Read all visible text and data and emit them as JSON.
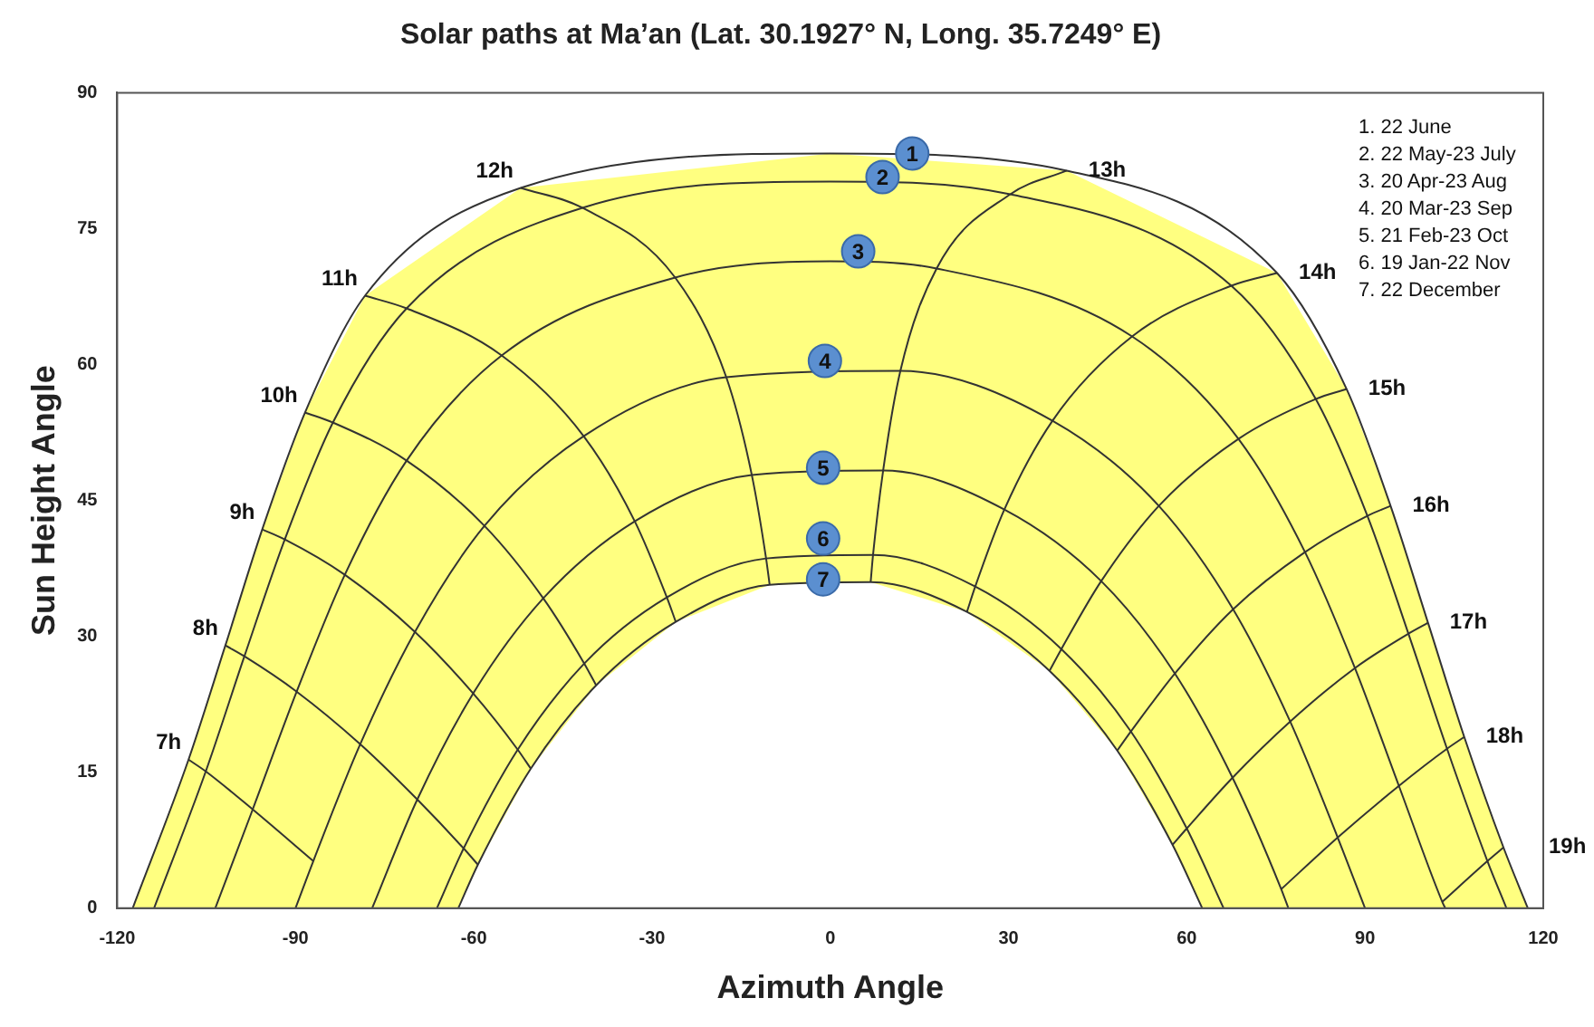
{
  "chart_data": {
    "type": "line",
    "title": "Solar paths at Ma’an (Lat. 30.1927° N, Long. 35.7249° E)",
    "xlabel": "Azimuth Angle",
    "ylabel": "Sun Height Angle",
    "xlim": [
      -120,
      120
    ],
    "xticks": [
      -120,
      -90,
      -60,
      -30,
      0,
      30,
      60,
      90,
      120
    ],
    "ylim": [
      0,
      90
    ],
    "yticks": [
      0,
      15,
      30,
      45,
      60,
      75,
      90
    ],
    "grid": false,
    "legend": false,
    "marker": "none",
    "line_style": "solid",
    "annotations": [
      "1. 22 June",
      "2. 22 May-23 July",
      "3. 20 Apr-23 Aug",
      "4. 20 Mar-23 Sep",
      "5. 21 Feb-23 Oct",
      "6. 19 Jan-22 Nov",
      "7. 22 December",
      {
        "text": "1",
        "x": 13.8,
        "y": 83.3
      },
      {
        "text": "2",
        "x": 8.8,
        "y": 80.7
      },
      {
        "text": "3",
        "x": 4.7,
        "y": 72.5
      },
      {
        "text": "4",
        "x": -0.9,
        "y": 60.4
      },
      {
        "text": "5",
        "x": -1.2,
        "y": 48.6
      },
      {
        "text": "6",
        "x": -1.2,
        "y": 40.8
      },
      {
        "text": "7",
        "x": -1.2,
        "y": 36.3
      }
    ],
    "series": [
      {
        "color": "#333333",
        "x": [
          -117.4,
          -108,
          -101.8,
          -95.6,
          -88.4,
          -78.3,
          -52.1,
          0,
          39.8,
          75.2,
          86.9,
          94.3,
          100.6,
          106.7,
          113.3,
          117.4
        ],
        "values": [
          0,
          16.4,
          29,
          41.8,
          54.7,
          67.6,
          79.5,
          83.3,
          81.4,
          70.1,
          57.3,
          44.4,
          31.5,
          18.9,
          6.7,
          0
        ]
      },
      {
        "color": "#333333",
        "x": [
          -113.8,
          -105.1,
          -98.6,
          -91.8,
          -83.7,
          -71.3,
          -41.7,
          0,
          30.3,
          67.5,
          81.7,
          90.4,
          97.3,
          103.8,
          110.6,
          113.8
        ],
        "values": [
          0,
          15.1,
          27.8,
          40.7,
          53.6,
          66.2,
          77.3,
          80.2,
          78.8,
          68.7,
          56.2,
          43.3,
          30.3,
          17.6,
          5.2,
          0
        ]
      },
      {
        "color": "#333333",
        "x": [
          -103.5,
          -97.2,
          -89.8,
          -81.7,
          -71.3,
          -55.3,
          -26.1,
          0,
          17.9,
          50.8,
          68.7,
          79.9,
          88.3,
          95.7,
          103,
          103.5
        ],
        "values": [
          0,
          10.9,
          23.9,
          36.8,
          49.4,
          61,
          69.6,
          71.4,
          70.6,
          63.1,
          51.8,
          39.3,
          26.5,
          13.5,
          0.7,
          0
        ]
      },
      {
        "color": "#333333",
        "x": [
          -90,
          -87,
          -79.1,
          -69.9,
          -58.2,
          -41.5,
          -17.5,
          11.8,
          37.4,
          55.3,
          67.8,
          77.4,
          85.4,
          90
        ],
        "values": [
          0,
          5.2,
          18.1,
          30.5,
          42.2,
          52.1,
          58.6,
          59.3,
          53.8,
          44.4,
          33,
          20.6,
          7.8,
          0
        ]
      },
      {
        "color": "#333333",
        "x": [
          -77.1,
          -69.5,
          -60.1,
          -48.3,
          -32.9,
          -13.2,
          8.9,
          29.3,
          45.6,
          58,
          67.7,
          75.9,
          77.1
        ],
        "values": [
          0,
          12,
          23.7,
          34.2,
          42.7,
          47.8,
          48.3,
          44,
          36.1,
          25.9,
          14.4,
          2.1,
          0
        ]
      },
      {
        "color": "#333333",
        "x": [
          -66.2,
          -61.7,
          -52.6,
          -41.4,
          -27.5,
          -10.8,
          7.2,
          24.4,
          38.9,
          50.6,
          60,
          66.2
        ],
        "values": [
          0,
          6.6,
          17.5,
          27,
          34.3,
          38.6,
          39,
          35.5,
          28.6,
          19.5,
          8.8,
          0
        ]
      },
      {
        "color": "#333333",
        "x": [
          -62.6,
          -59.3,
          -50.4,
          -39.4,
          -26,
          -10.2,
          6.8,
          23,
          36.9,
          48.3,
          57.6,
          62.6
        ],
        "values": [
          0,
          4.8,
          15.4,
          24.6,
          31.6,
          35.7,
          36,
          32.7,
          26.2,
          17.4,
          7,
          0
        ]
      },
      {
        "name": "7h",
        "color": "#333333",
        "x": [
          -108,
          -105.1,
          -97.2,
          -87
        ],
        "values": [
          16.4,
          15.1,
          10.9,
          5.2
        ]
      },
      {
        "name": "8h",
        "color": "#333333",
        "x": [
          -101.8,
          -98.6,
          -89.8,
          -79.1,
          -69.5,
          -61.7,
          -59.3
        ],
        "values": [
          29,
          27.8,
          23.9,
          18.1,
          12,
          6.6,
          4.8
        ]
      },
      {
        "name": "9h",
        "color": "#333333",
        "x": [
          -95.6,
          -91.8,
          -81.7,
          -69.9,
          -60.1,
          -52.6,
          -50.4
        ],
        "values": [
          41.8,
          40.7,
          36.8,
          30.5,
          23.7,
          17.5,
          15.4
        ]
      },
      {
        "name": "10h",
        "color": "#333333",
        "x": [
          -88.4,
          -83.7,
          -71.3,
          -58.2,
          -48.3,
          -41.4,
          -39.4
        ],
        "values": [
          54.7,
          53.6,
          49.4,
          42.2,
          34.2,
          27,
          24.6
        ]
      },
      {
        "name": "11h",
        "color": "#333333",
        "x": [
          -78.3,
          -71.3,
          -55.3,
          -41.5,
          -32.9,
          -27.5,
          -26
        ],
        "values": [
          67.6,
          66.2,
          61,
          52.1,
          42.7,
          34.3,
          31.6
        ]
      },
      {
        "name": "12h",
        "color": "#333333",
        "x": [
          -52.1,
          -41.7,
          -26.1,
          -17.5,
          -13.2,
          -10.8,
          -10.2
        ],
        "values": [
          79.5,
          77.3,
          69.6,
          58.6,
          47.8,
          38.6,
          35.7
        ]
      },
      {
        "name": "13h",
        "color": "#333333",
        "x": [
          39.8,
          30.3,
          17.9,
          11.8,
          8.9,
          7.2,
          6.8
        ],
        "values": [
          81.4,
          78.8,
          70.6,
          59.3,
          48.3,
          39,
          36
        ]
      },
      {
        "name": "14h",
        "color": "#333333",
        "x": [
          75.2,
          67.5,
          50.8,
          37.4,
          29.3,
          24.4,
          23
        ],
        "values": [
          70.1,
          68.7,
          63.1,
          53.8,
          44,
          35.5,
          32.7
        ]
      },
      {
        "name": "15h",
        "color": "#333333",
        "x": [
          86.9,
          81.7,
          68.7,
          55.3,
          45.6,
          38.9,
          36.9
        ],
        "values": [
          57.3,
          56.2,
          51.8,
          44.4,
          36.1,
          28.6,
          26.2
        ]
      },
      {
        "name": "16h",
        "color": "#333333",
        "x": [
          94.3,
          90.4,
          79.9,
          67.8,
          58,
          50.6,
          48.3
        ],
        "values": [
          44.4,
          43.3,
          39.3,
          33,
          25.9,
          19.5,
          17.4
        ]
      },
      {
        "name": "17h",
        "color": "#333333",
        "x": [
          100.6,
          97.3,
          88.3,
          77.4,
          67.7,
          60,
          57.6
        ],
        "values": [
          31.5,
          30.3,
          26.5,
          20.6,
          14.4,
          8.8,
          7
        ]
      },
      {
        "name": "18h",
        "color": "#333333",
        "x": [
          106.7,
          103.8,
          95.7,
          85.4,
          75.9
        ],
        "values": [
          18.9,
          17.6,
          13.5,
          7.8,
          2.1
        ]
      },
      {
        "name": "19h",
        "color": "#333333",
        "x": [
          113.3,
          110.6,
          103
        ],
        "values": [
          6.7,
          5.2,
          0.7
        ]
      }
    ]
  }
}
